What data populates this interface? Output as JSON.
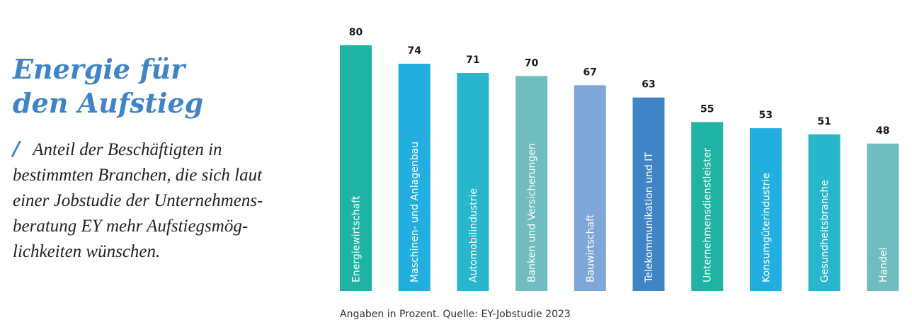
{
  "heading": {
    "line1": "Energie für",
    "line2": "den Aufstieg"
  },
  "description": {
    "marker": "/",
    "lines": [
      "Anteil der Beschäftigten in",
      "bestimmten Branchen, die sich laut",
      "einer Jobstudie der Unternehmens-",
      "beratung EY mehr Aufstiegsmög-",
      "lichkeiten wünschen."
    ]
  },
  "source_note": "Angaben in Prozent. Quelle: EY-Jobstudie 2023",
  "colors": {
    "heading": "#3f84c6",
    "value_label": "#1a1a1a",
    "bar_text": "#ffffff"
  },
  "chart_data": {
    "type": "bar",
    "orientation": "vertical",
    "categories": [
      "Energiewirtschaft",
      "Maschinen- und Anlagenbau",
      "Automobilindustrie",
      "Banken und Versicherungen",
      "Bauwirtschaft",
      "Telekommunikation und IT",
      "Unternehmensdienstleister",
      "Konsumgüterindustrie",
      "Gesundheitsbranche",
      "Handel"
    ],
    "values": [
      80,
      74,
      71,
      70,
      67,
      63,
      55,
      53,
      51,
      48
    ],
    "value_labels": [
      "80",
      "74",
      "71",
      "70",
      "67",
      "63",
      "55",
      "53",
      "51",
      "48"
    ],
    "bar_colors": [
      "#1fb3a3",
      "#23aee0",
      "#27b6cc",
      "#6fbdbf",
      "#7fa6d8",
      "#3f84c6",
      "#1fb3a3",
      "#23aee0",
      "#27b6cc",
      "#6fbdbf"
    ],
    "category_labels_inside_bars": true,
    "unit": "Prozent",
    "grid": false,
    "legend": "none"
  }
}
